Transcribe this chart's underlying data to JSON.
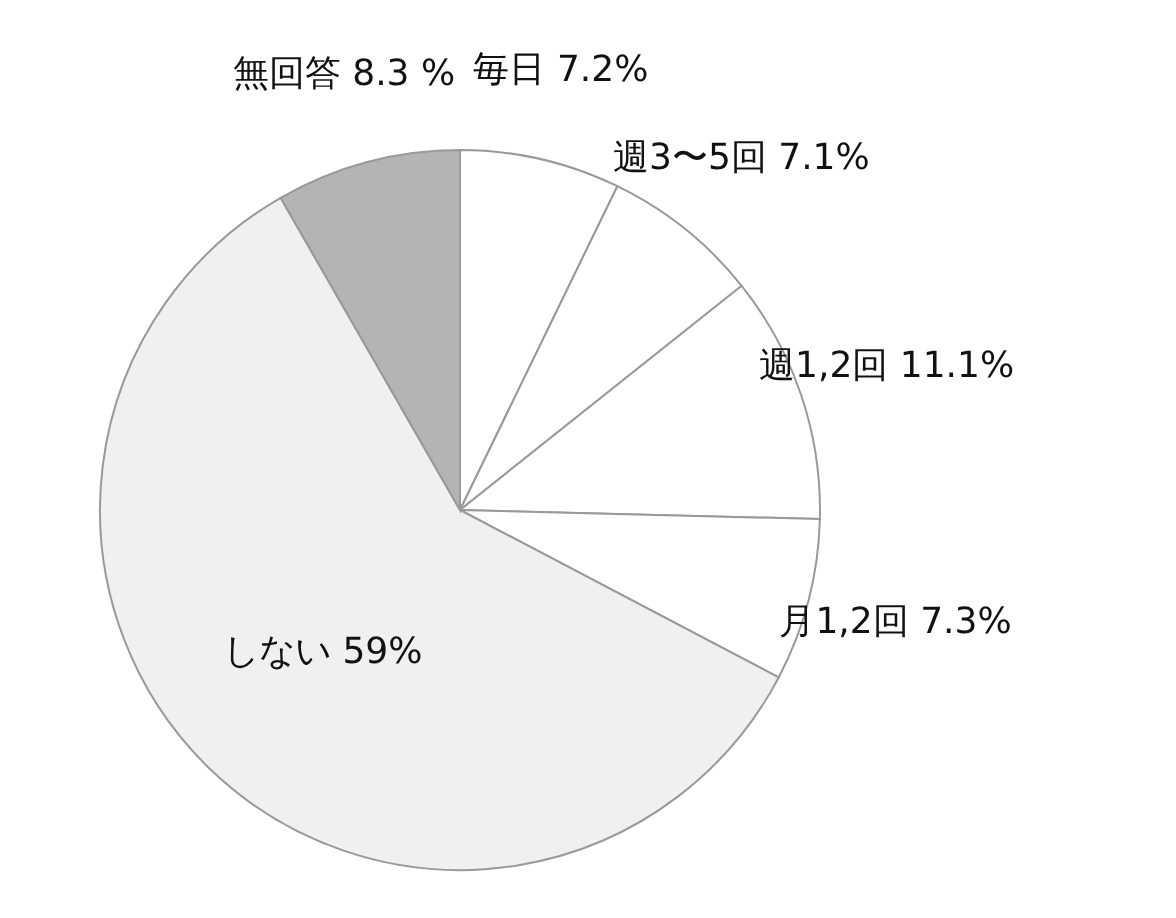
{
  "chart_data": {
    "type": "pie",
    "categories": [
      "毎日",
      "週3〜5回",
      "週1,2回",
      "月1,2回",
      "しない",
      "無回答"
    ],
    "values": [
      7.2,
      7.1,
      11.1,
      7.3,
      59,
      8.3
    ],
    "value_labels": [
      "7.2%",
      "7.1%",
      "11.1%",
      "7.3%",
      "59%",
      "8.3 %"
    ],
    "colors": [
      "#ffffff",
      "#ffffff",
      "#ffffff",
      "#ffffff",
      "#f0f0f0",
      "#b4b4b4"
    ]
  }
}
